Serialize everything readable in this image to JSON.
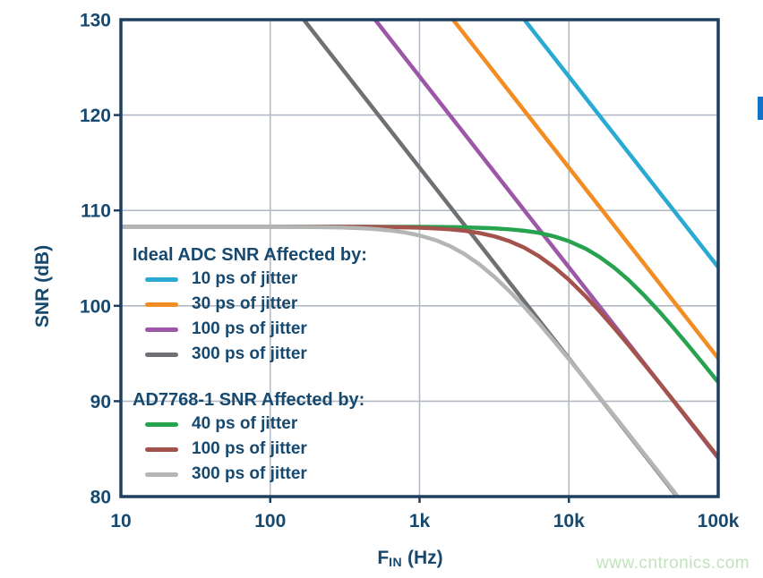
{
  "page": {
    "background": "#ffffff",
    "watermark": {
      "text": "www.cntronics.com",
      "color": "#c0e5ba"
    },
    "side_marker_color": "#1472c8"
  },
  "chart_data": {
    "type": "line",
    "title": "",
    "xlabel": {
      "symbol": "F",
      "subscript": "IN",
      "unit": " (Hz)"
    },
    "ylabel": "SNR (dB)",
    "x_scale": "log",
    "xlim": [
      10,
      100000
    ],
    "ylim": [
      80,
      130
    ],
    "x_ticks": [
      {
        "v": 10,
        "label": "10"
      },
      {
        "v": 100,
        "label": "100"
      },
      {
        "v": 1000,
        "label": "1k"
      },
      {
        "v": 10000,
        "label": "10k"
      },
      {
        "v": 100000,
        "label": "100k"
      }
    ],
    "y_ticks": [
      {
        "v": 80,
        "label": "80"
      },
      {
        "v": 90,
        "label": "90"
      },
      {
        "v": 100,
        "label": "100"
      },
      {
        "v": 110,
        "label": "110"
      },
      {
        "v": 120,
        "label": "120"
      },
      {
        "v": 130,
        "label": "130"
      }
    ],
    "grid": true,
    "legend_position": "inside-left",
    "colors": {
      "axis": "#1e3f5f",
      "grid": "#b3bac6",
      "tick_label": "#17496f"
    },
    "snr_floor_db": 108.3,
    "legends": [
      {
        "title": "Ideal ADC SNR Affected by:",
        "entries": [
          {
            "label": "10 ps of jitter",
            "color": "#2aa9d2"
          },
          {
            "label": "30 ps of jitter",
            "color": "#f18d22"
          },
          {
            "label": "100 ps of jitter",
            "color": "#9c58a6"
          },
          {
            "label": "300 ps of jitter",
            "color": "#6f7073"
          }
        ]
      },
      {
        "title": "AD7768-1 SNR Affected by:",
        "entries": [
          {
            "label": "40 ps of jitter",
            "color": "#27a24f"
          },
          {
            "label": "100 ps of jitter",
            "color": "#a4534c"
          },
          {
            "label": "300 ps of jitter",
            "color": "#b4b6b6"
          }
        ]
      }
    ],
    "series": [
      {
        "name": "ideal-10ps",
        "jitter_ps": 10,
        "group": "ideal",
        "color": "#2aa9d2",
        "points": [
          [
            10,
            184.04
          ],
          [
            100000,
            104.04
          ]
        ]
      },
      {
        "name": "ideal-30ps",
        "jitter_ps": 30,
        "group": "ideal",
        "color": "#f18d22",
        "points": [
          [
            10,
            174.49
          ],
          [
            100000,
            94.49
          ]
        ]
      },
      {
        "name": "ideal-100ps",
        "jitter_ps": 100,
        "group": "ideal",
        "color": "#9c58a6",
        "points": [
          [
            10,
            164.04
          ],
          [
            100000,
            84.04
          ]
        ]
      },
      {
        "name": "ideal-300ps",
        "jitter_ps": 300,
        "group": "ideal",
        "color": "#6f7073",
        "points": [
          [
            10,
            154.49
          ],
          [
            100000,
            74.49
          ]
        ]
      },
      {
        "name": "ad7768-40ps",
        "jitter_ps": 40,
        "group": "ad7768-1",
        "color": "#27a24f",
        "points": [
          [
            10,
            108.3
          ],
          [
            100,
            108.3
          ],
          [
            300,
            108.3
          ],
          [
            1000,
            108.28
          ],
          [
            1500,
            108.26
          ],
          [
            2000,
            108.23
          ],
          [
            3000,
            108.14
          ],
          [
            4000,
            108.02
          ],
          [
            5000,
            107.87
          ],
          [
            6300,
            107.66
          ],
          [
            8000,
            107.27
          ],
          [
            10000,
            106.78
          ],
          [
            13000,
            105.98
          ],
          [
            16000,
            105.14
          ],
          [
            20000,
            104.03
          ],
          [
            25000,
            102.73
          ],
          [
            32000,
            101.08
          ],
          [
            40000,
            99.45
          ],
          [
            50000,
            97.72
          ],
          [
            63000,
            95.85
          ],
          [
            80000,
            93.87
          ],
          [
            100000,
            91.99
          ]
        ]
      },
      {
        "name": "ad7768-100ps",
        "jitter_ps": 100,
        "group": "ad7768-1",
        "color": "#a4534c",
        "points": [
          [
            10,
            108.3
          ],
          [
            100,
            108.3
          ],
          [
            300,
            108.29
          ],
          [
            500,
            108.27
          ],
          [
            800,
            108.23
          ],
          [
            1000,
            108.19
          ],
          [
            1300,
            108.11
          ],
          [
            1600,
            108.02
          ],
          [
            2000,
            107.87
          ],
          [
            2500,
            107.64
          ],
          [
            3200,
            107.27
          ],
          [
            4000,
            106.78
          ],
          [
            5000,
            106.12
          ],
          [
            6300,
            105.21
          ],
          [
            8000,
            104.03
          ],
          [
            10000,
            102.73
          ],
          [
            13000,
            100.97
          ],
          [
            16000,
            99.45
          ],
          [
            20000,
            97.72
          ],
          [
            25000,
            95.92
          ],
          [
            32000,
            93.87
          ],
          [
            40000,
            91.99
          ],
          [
            50000,
            90.09
          ],
          [
            63000,
            88.11
          ],
          [
            80000,
            86.05
          ],
          [
            100000,
            84.12
          ]
        ]
      },
      {
        "name": "ad7768-300ps",
        "jitter_ps": 300,
        "group": "ad7768-1",
        "color": "#b4b6b6",
        "points": [
          [
            10,
            108.3
          ],
          [
            100,
            108.29
          ],
          [
            200,
            108.26
          ],
          [
            300,
            108.21
          ],
          [
            400,
            108.14
          ],
          [
            500,
            108.05
          ],
          [
            630,
            107.91
          ],
          [
            800,
            107.69
          ],
          [
            1000,
            107.38
          ],
          [
            1300,
            106.85
          ],
          [
            1600,
            106.26
          ],
          [
            2000,
            105.42
          ],
          [
            2500,
            104.38
          ],
          [
            3200,
            102.98
          ],
          [
            4000,
            101.53
          ],
          [
            5000,
            99.93
          ],
          [
            6300,
            98.17
          ],
          [
            8000,
            96.25
          ],
          [
            10000,
            94.41
          ],
          [
            13000,
            92.21
          ],
          [
            16000,
            90.44
          ],
          [
            20000,
            88.53
          ],
          [
            25000,
            86.61
          ],
          [
            32000,
            84.47
          ],
          [
            40000,
            82.54
          ],
          [
            50000,
            80.61
          ],
          [
            63000,
            78.5
          ],
          [
            70000,
            77.6
          ]
        ]
      }
    ]
  }
}
